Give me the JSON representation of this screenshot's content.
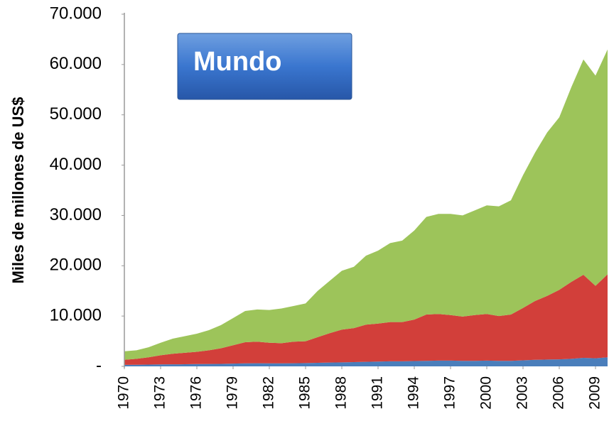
{
  "chart_data": {
    "type": "stacked-area",
    "title": "Mundo",
    "y_label": "Miles de millones  de US$",
    "x": [
      1970,
      1971,
      1972,
      1973,
      1974,
      1975,
      1976,
      1977,
      1978,
      1979,
      1980,
      1981,
      1982,
      1983,
      1984,
      1985,
      1986,
      1987,
      1988,
      1989,
      1990,
      1991,
      1992,
      1993,
      1994,
      1995,
      1996,
      1997,
      1998,
      1999,
      2000,
      2001,
      2002,
      2003,
      2004,
      2005,
      2006,
      2007,
      2008,
      2009,
      2010
    ],
    "xlim": [
      1970,
      2010
    ],
    "xticks": [
      1970,
      1973,
      1976,
      1979,
      1982,
      1985,
      1988,
      1991,
      1994,
      1997,
      2000,
      2003,
      2006,
      2009
    ],
    "ylim": [
      0,
      70000
    ],
    "yticks": [
      {
        "value": 0,
        "label": "-"
      },
      {
        "value": 10000,
        "label": "10.000"
      },
      {
        "value": 20000,
        "label": "20.000"
      },
      {
        "value": 30000,
        "label": "30.000"
      },
      {
        "value": 40000,
        "label": "40.000"
      },
      {
        "value": 50000,
        "label": "50.000"
      },
      {
        "value": 60000,
        "label": "60.000"
      },
      {
        "value": 70000,
        "label": "70.000"
      }
    ],
    "series": [
      {
        "color": "#4a7ebb",
        "values": [
          300,
          320,
          350,
          380,
          400,
          420,
          450,
          480,
          500,
          550,
          600,
          620,
          600,
          600,
          620,
          650,
          700,
          750,
          800,
          850,
          900,
          950,
          1000,
          1000,
          1050,
          1100,
          1150,
          1150,
          1100,
          1100,
          1150,
          1100,
          1100,
          1200,
          1300,
          1350,
          1400,
          1500,
          1700,
          1600,
          1800
        ]
      },
      {
        "color": "#d23f3a",
        "values": [
          1000,
          1180,
          1450,
          1820,
          2100,
          2280,
          2450,
          2720,
          3100,
          3650,
          4200,
          4280,
          4100,
          4000,
          4280,
          4350,
          5100,
          5850,
          6500,
          6750,
          7400,
          7550,
          7800,
          7800,
          8250,
          9200,
          9250,
          9050,
          8800,
          9100,
          9250,
          8900,
          9200,
          10400,
          11700,
          12650,
          13800,
          15300,
          16500,
          14400,
          16500
        ]
      },
      {
        "color": "#9dc45a",
        "values": [
          1700,
          1700,
          2000,
          2500,
          3000,
          3300,
          3600,
          4000,
          4600,
          5400,
          6200,
          6400,
          6500,
          6900,
          7100,
          7500,
          9200,
          10400,
          11700,
          12200,
          13700,
          14500,
          15700,
          16200,
          17700,
          19400,
          19900,
          20100,
          20100,
          20800,
          21600,
          21800,
          22700,
          26400,
          29500,
          32500,
          34300,
          38700,
          42800,
          41800,
          44700
        ]
      }
    ]
  }
}
